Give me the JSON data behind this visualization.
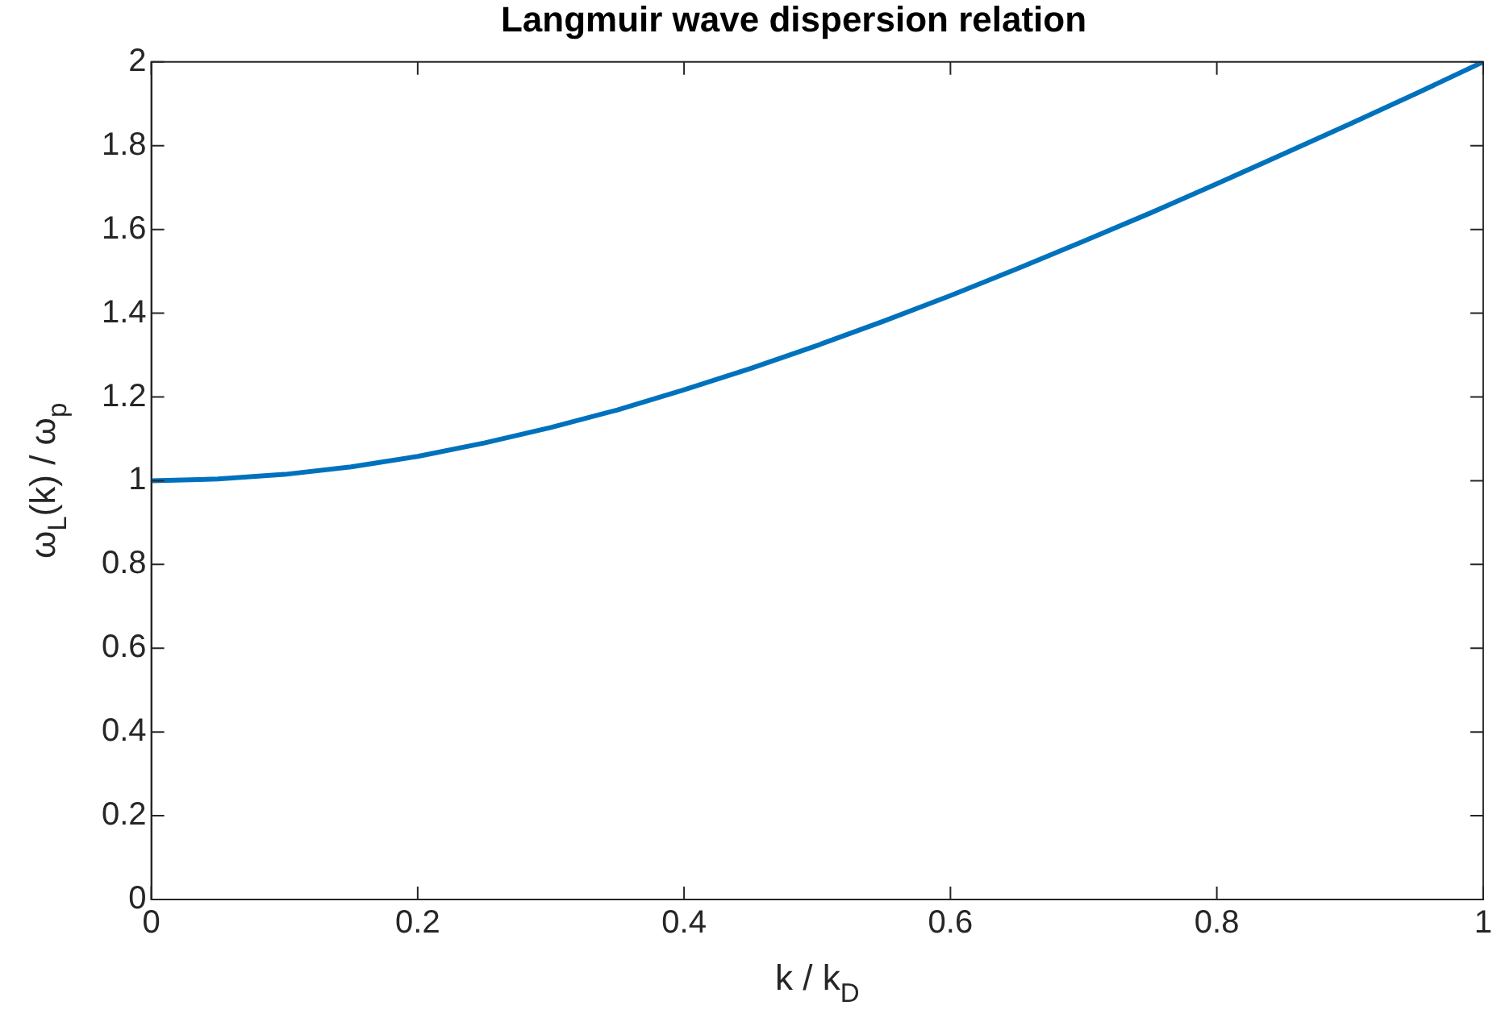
{
  "chart_data": {
    "type": "line",
    "title": "Langmuir wave dispersion relation",
    "xlabel": "k / k$_{D}$",
    "ylabel": "ω$_{L}$(k) / ω$_{p}$",
    "x": [
      0,
      0.05,
      0.1,
      0.15,
      0.2,
      0.25,
      0.3,
      0.35,
      0.4,
      0.45,
      0.5,
      0.55,
      0.6,
      0.65,
      0.7,
      0.75,
      0.8,
      0.85,
      0.9,
      0.95,
      1
    ],
    "series": [
      {
        "color": "#0072bd",
        "values": [
          1,
          1.004,
          1.015,
          1.033,
          1.058,
          1.09,
          1.127,
          1.169,
          1.217,
          1.268,
          1.323,
          1.381,
          1.442,
          1.506,
          1.572,
          1.639,
          1.709,
          1.78,
          1.852,
          1.925,
          2
        ]
      }
    ],
    "xlim": [
      0,
      1
    ],
    "xticks": [
      0,
      0.2,
      0.4,
      0.6,
      0.8,
      1
    ],
    "ylim": [
      0,
      2
    ],
    "yticks": [
      0,
      0.2,
      0.4,
      0.6,
      0.8,
      1,
      1.2,
      1.4,
      1.6,
      1.8,
      2
    ],
    "grid": false,
    "legend": false,
    "marker": "none",
    "line_style": "solid"
  }
}
